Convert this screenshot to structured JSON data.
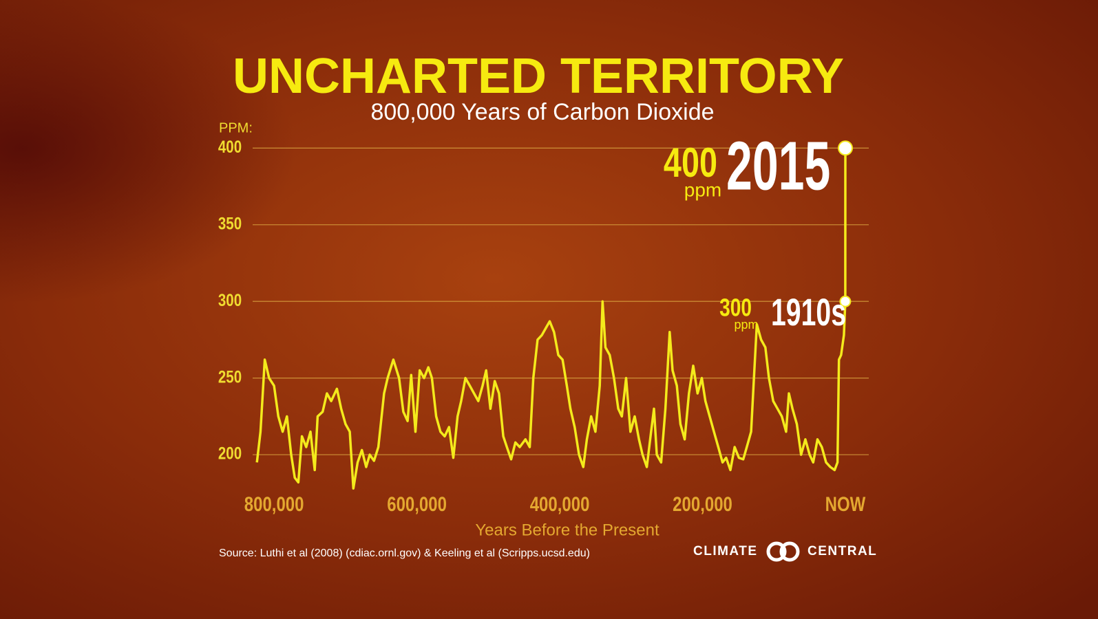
{
  "chart_data": {
    "type": "line",
    "title": "UNCHARTED TERRITORY",
    "subtitle": "800,000 Years of Carbon Dioxide",
    "y_label": "PPM:",
    "x_label": "Years Before the Present",
    "source": "Source:  Luthi et al (2008) (cdiac.ornl.gov) & Keeling et al (Scripps.ucsd.edu)",
    "color": "#f4ea1c",
    "grid": true,
    "xlim": [
      830000,
      0
    ],
    "ylim": [
      170,
      410
    ],
    "xticks": [
      {
        "value": 800000,
        "label": "800,000"
      },
      {
        "value": 600000,
        "label": "600,000"
      },
      {
        "value": 400000,
        "label": "400,000"
      },
      {
        "value": 200000,
        "label": "200,000"
      },
      {
        "value": 0,
        "label": "NOW"
      }
    ],
    "yticks": [
      200,
      250,
      300,
      350,
      400
    ],
    "x": [
      824000,
      819000,
      813000,
      807000,
      800000,
      794000,
      788000,
      782000,
      776000,
      771000,
      766000,
      761000,
      755000,
      749000,
      743000,
      739000,
      732000,
      726000,
      720000,
      712000,
      706000,
      700000,
      694000,
      689000,
      683000,
      677000,
      671000,
      666000,
      660000,
      654000,
      646000,
      641000,
      633000,
      625000,
      619000,
      613000,
      608000,
      602000,
      596000,
      590000,
      584000,
      579000,
      573000,
      567000,
      561000,
      555000,
      549000,
      543000,
      538000,
      532000,
      526000,
      520000,
      514000,
      508000,
      503000,
      497000,
      491000,
      485000,
      479000,
      474000,
      468000,
      462000,
      456000,
      448000,
      442000,
      437000,
      431000,
      425000,
      419000,
      414000,
      408000,
      402000,
      396000,
      390000,
      385000,
      379000,
      373000,
      367000,
      362000,
      356000,
      350000,
      344000,
      340000,
      336000,
      330000,
      324000,
      318000,
      313000,
      307000,
      301000,
      295000,
      289000,
      284000,
      278000,
      272000,
      268000,
      264000,
      258000,
      252000,
      246000,
      242000,
      236000,
      231000,
      225000,
      219000,
      213000,
      207000,
      201000,
      196000,
      190000,
      184000,
      178000,
      172000,
      167000,
      161000,
      155000,
      149000,
      143000,
      138000,
      132000,
      128000,
      124000,
      118000,
      112000,
      107000,
      101000,
      95000,
      89000,
      83000,
      79000,
      74000,
      68000,
      62000,
      56000,
      50000,
      45000,
      39000,
      33000,
      27000,
      21000,
      15000,
      11000,
      9000,
      6000,
      2000,
      105,
      0
    ],
    "values": [
      195,
      215,
      262,
      250,
      245,
      225,
      215,
      225,
      200,
      185,
      182,
      212,
      205,
      215,
      190,
      225,
      228,
      240,
      235,
      243,
      230,
      220,
      215,
      178,
      195,
      203,
      192,
      200,
      196,
      205,
      240,
      250,
      262,
      250,
      228,
      222,
      252,
      215,
      255,
      250,
      257,
      250,
      225,
      215,
      212,
      218,
      198,
      225,
      235,
      250,
      245,
      240,
      235,
      245,
      255,
      230,
      248,
      240,
      212,
      205,
      197,
      208,
      205,
      210,
      205,
      250,
      275,
      278,
      283,
      287,
      280,
      265,
      262,
      245,
      230,
      218,
      200,
      192,
      210,
      225,
      215,
      245,
      300,
      270,
      265,
      250,
      230,
      225,
      250,
      215,
      225,
      210,
      200,
      192,
      215,
      230,
      200,
      195,
      230,
      280,
      255,
      245,
      220,
      210,
      240,
      258,
      240,
      250,
      235,
      225,
      215,
      205,
      195,
      198,
      190,
      205,
      198,
      197,
      205,
      215,
      250,
      285,
      275,
      270,
      250,
      235,
      230,
      225,
      215,
      240,
      230,
      220,
      200,
      210,
      200,
      195,
      210,
      205,
      195,
      192,
      190,
      195,
      262,
      265,
      278,
      300,
      400
    ],
    "annotations": [
      {
        "x": 0,
        "y": 400,
        "unit": "ppm",
        "label": "2015"
      },
      {
        "x": 105,
        "y": 300,
        "unit": "ppm",
        "label": "1910s"
      }
    ]
  },
  "branding": {
    "left": "CLIMATE",
    "right": "CENTRAL"
  }
}
